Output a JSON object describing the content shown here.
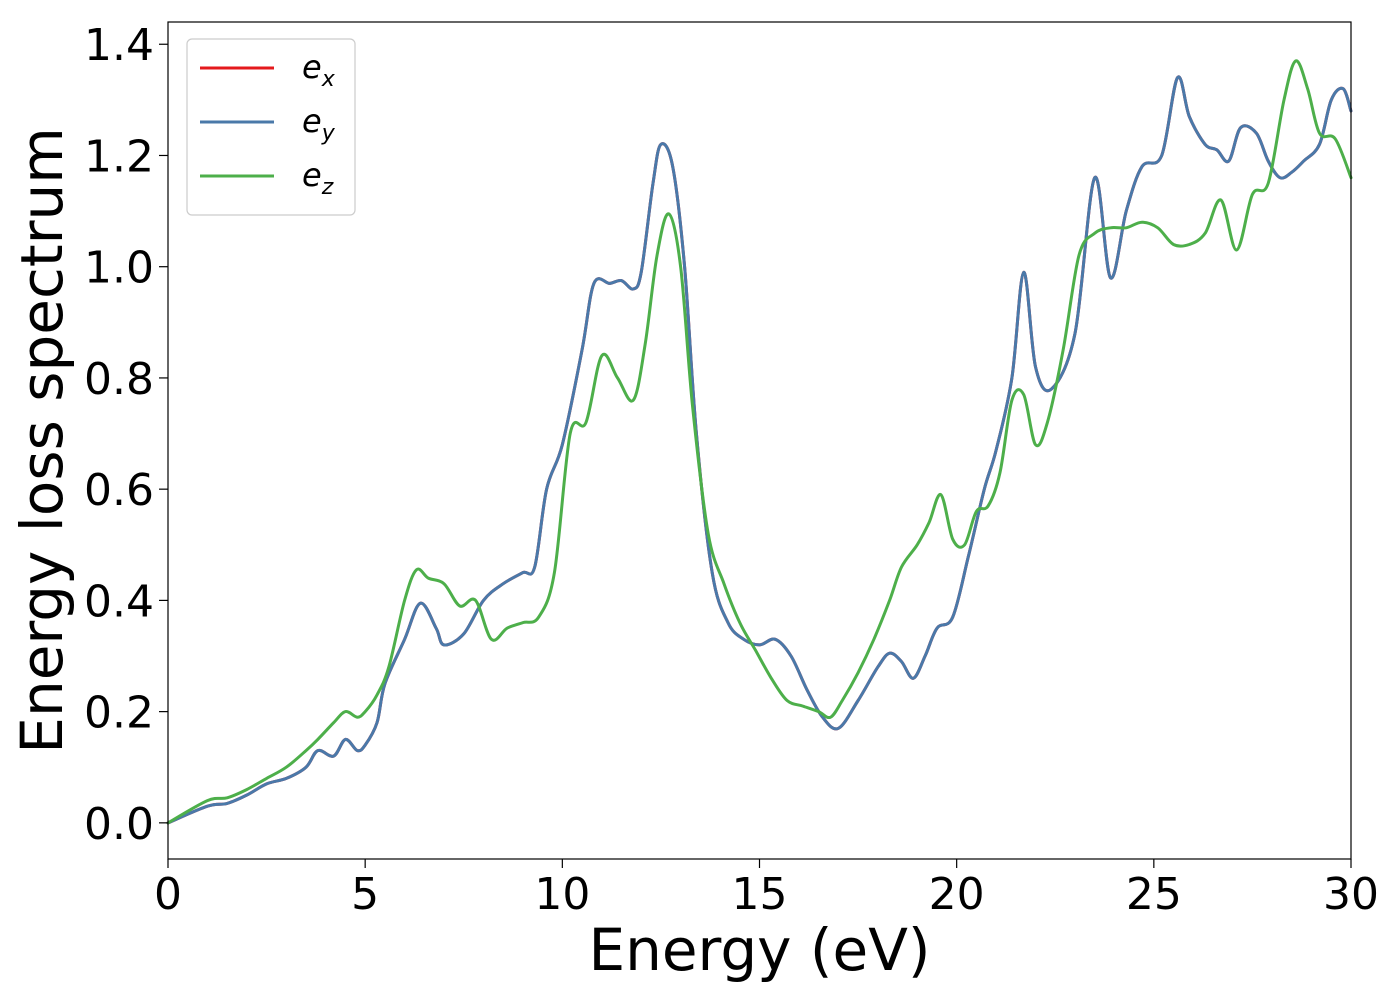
{
  "chart_data": {
    "type": "line",
    "xlabel": "Energy (eV)",
    "ylabel": "Energy loss spectrum",
    "xlim": [
      0,
      30
    ],
    "ylim": [
      -0.065,
      1.44
    ],
    "xticks": [
      0,
      5,
      10,
      15,
      20,
      25,
      30
    ],
    "xtick_labels": [
      "0",
      "5",
      "10",
      "15",
      "20",
      "25",
      "30"
    ],
    "yticks": [
      0.0,
      0.2,
      0.4,
      0.6,
      0.8,
      1.0,
      1.2,
      1.4
    ],
    "ytick_labels": [
      "0.0",
      "0.2",
      "0.4",
      "0.6",
      "0.8",
      "1.0",
      "1.2",
      "1.4"
    ],
    "grid": false,
    "legend_position": "top-left",
    "series": [
      {
        "name": "e_x",
        "legend_base": "e",
        "legend_sub": "x",
        "color": "#e41a1c",
        "x": [
          0,
          1,
          1.5,
          2,
          2.5,
          3,
          3.5,
          3.8,
          4.2,
          4.5,
          4.8,
          5,
          5.3,
          5.5,
          6,
          6.4,
          6.8,
          7,
          7.5,
          8,
          8.5,
          9,
          9.3,
          9.6,
          10,
          10.5,
          10.8,
          11.2,
          11.5,
          11.8,
          12,
          12.3,
          12.5,
          12.8,
          13.1,
          13.4,
          13.8,
          14.2,
          14.6,
          15,
          15.4,
          15.8,
          16.2,
          16.6,
          17,
          17.5,
          18,
          18.3,
          18.6,
          18.9,
          19.2,
          19.5,
          19.9,
          20.3,
          20.7,
          21,
          21.4,
          21.7,
          22,
          22.4,
          23,
          23.5,
          23.9,
          24.3,
          24.7,
          25.2,
          25.6,
          25.9,
          26.3,
          26.6,
          26.9,
          27.2,
          27.6,
          27.9,
          28.2,
          28.5,
          28.8,
          29.2,
          29.5,
          29.8,
          30
        ],
        "values": [
          0,
          0.03,
          0.035,
          0.05,
          0.07,
          0.08,
          0.1,
          0.13,
          0.12,
          0.15,
          0.13,
          0.14,
          0.18,
          0.25,
          0.33,
          0.395,
          0.35,
          0.32,
          0.34,
          0.4,
          0.43,
          0.45,
          0.46,
          0.6,
          0.68,
          0.85,
          0.97,
          0.97,
          0.975,
          0.96,
          0.99,
          1.15,
          1.22,
          1.18,
          1.0,
          0.7,
          0.45,
          0.36,
          0.33,
          0.32,
          0.33,
          0.3,
          0.24,
          0.19,
          0.17,
          0.22,
          0.28,
          0.305,
          0.29,
          0.26,
          0.3,
          0.35,
          0.37,
          0.48,
          0.6,
          0.67,
          0.8,
          0.99,
          0.82,
          0.78,
          0.88,
          1.16,
          0.98,
          1.1,
          1.18,
          1.2,
          1.34,
          1.27,
          1.22,
          1.21,
          1.19,
          1.25,
          1.24,
          1.19,
          1.16,
          1.17,
          1.19,
          1.22,
          1.3,
          1.32,
          1.28
        ]
      },
      {
        "name": "e_y",
        "legend_base": "e",
        "legend_sub": "y",
        "color": "#4a79a9",
        "x": [
          0,
          1,
          1.5,
          2,
          2.5,
          3,
          3.5,
          3.8,
          4.2,
          4.5,
          4.8,
          5,
          5.3,
          5.5,
          6,
          6.4,
          6.8,
          7,
          7.5,
          8,
          8.5,
          9,
          9.3,
          9.6,
          10,
          10.5,
          10.8,
          11.2,
          11.5,
          11.8,
          12,
          12.3,
          12.5,
          12.8,
          13.1,
          13.4,
          13.8,
          14.2,
          14.6,
          15,
          15.4,
          15.8,
          16.2,
          16.6,
          17,
          17.5,
          18,
          18.3,
          18.6,
          18.9,
          19.2,
          19.5,
          19.9,
          20.3,
          20.7,
          21,
          21.4,
          21.7,
          22,
          22.4,
          23,
          23.5,
          23.9,
          24.3,
          24.7,
          25.2,
          25.6,
          25.9,
          26.3,
          26.6,
          26.9,
          27.2,
          27.6,
          27.9,
          28.2,
          28.5,
          28.8,
          29.2,
          29.5,
          29.8,
          30
        ],
        "values": [
          0,
          0.03,
          0.035,
          0.05,
          0.07,
          0.08,
          0.1,
          0.13,
          0.12,
          0.15,
          0.13,
          0.14,
          0.18,
          0.25,
          0.33,
          0.395,
          0.35,
          0.32,
          0.34,
          0.4,
          0.43,
          0.45,
          0.46,
          0.6,
          0.68,
          0.85,
          0.97,
          0.97,
          0.975,
          0.96,
          0.99,
          1.15,
          1.22,
          1.18,
          1.0,
          0.7,
          0.45,
          0.36,
          0.33,
          0.32,
          0.33,
          0.3,
          0.24,
          0.19,
          0.17,
          0.22,
          0.28,
          0.305,
          0.29,
          0.26,
          0.3,
          0.35,
          0.37,
          0.48,
          0.6,
          0.67,
          0.8,
          0.99,
          0.82,
          0.78,
          0.88,
          1.16,
          0.98,
          1.1,
          1.18,
          1.2,
          1.34,
          1.27,
          1.22,
          1.21,
          1.19,
          1.25,
          1.24,
          1.19,
          1.16,
          1.17,
          1.19,
          1.22,
          1.3,
          1.32,
          1.28
        ]
      },
      {
        "name": "e_z",
        "legend_base": "e",
        "legend_sub": "z",
        "color": "#4daf4a",
        "x": [
          0,
          1,
          1.5,
          2,
          2.5,
          3,
          3.5,
          3.8,
          4.2,
          4.5,
          4.8,
          5,
          5.3,
          5.6,
          6,
          6.3,
          6.6,
          7,
          7.4,
          7.8,
          8.2,
          8.6,
          9,
          9.4,
          9.8,
          10.2,
          10.6,
          11,
          11.4,
          11.8,
          12.1,
          12.4,
          12.7,
          13,
          13.3,
          13.7,
          14.1,
          14.5,
          14.9,
          15.3,
          15.7,
          16.1,
          16.5,
          16.8,
          17.1,
          17.5,
          17.9,
          18.3,
          18.6,
          19,
          19.3,
          19.6,
          19.9,
          20.2,
          20.5,
          20.8,
          21.1,
          21.4,
          21.7,
          22,
          22.3,
          22.7,
          23.1,
          23.5,
          23.9,
          24.3,
          24.7,
          25.1,
          25.5,
          25.9,
          26.3,
          26.7,
          27.1,
          27.5,
          27.9,
          28.3,
          28.6,
          28.9,
          29.2,
          29.6,
          30
        ],
        "values": [
          0,
          0.04,
          0.045,
          0.06,
          0.08,
          0.1,
          0.13,
          0.15,
          0.18,
          0.2,
          0.19,
          0.2,
          0.23,
          0.28,
          0.4,
          0.455,
          0.44,
          0.43,
          0.39,
          0.4,
          0.33,
          0.35,
          0.36,
          0.37,
          0.45,
          0.7,
          0.72,
          0.84,
          0.8,
          0.76,
          0.86,
          1.02,
          1.095,
          1.0,
          0.75,
          0.52,
          0.43,
          0.36,
          0.31,
          0.26,
          0.22,
          0.21,
          0.2,
          0.19,
          0.22,
          0.27,
          0.33,
          0.4,
          0.46,
          0.5,
          0.54,
          0.59,
          0.51,
          0.5,
          0.56,
          0.57,
          0.63,
          0.76,
          0.77,
          0.68,
          0.72,
          0.85,
          1.02,
          1.06,
          1.07,
          1.07,
          1.08,
          1.07,
          1.04,
          1.04,
          1.06,
          1.12,
          1.03,
          1.13,
          1.15,
          1.3,
          1.37,
          1.32,
          1.24,
          1.23,
          1.16
        ]
      }
    ]
  }
}
